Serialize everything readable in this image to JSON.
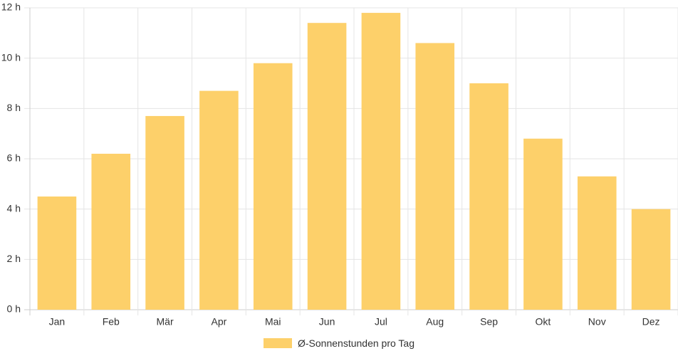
{
  "chart_data": {
    "type": "bar",
    "categories": [
      "Jan",
      "Feb",
      "Mär",
      "Apr",
      "Mai",
      "Jun",
      "Jul",
      "Aug",
      "Sep",
      "Okt",
      "Nov",
      "Dez"
    ],
    "series": [
      {
        "name": "Ø-Sonnenstunden pro Tag",
        "values": [
          4.5,
          6.2,
          7.7,
          8.7,
          9.8,
          11.4,
          11.8,
          10.6,
          9.0,
          6.8,
          5.3,
          4.0
        ]
      }
    ],
    "ylim": [
      0,
      12
    ],
    "y_ticks": [
      "0 h",
      "2 h",
      "4 h",
      "6 h",
      "8 h",
      "10 h",
      "12 h"
    ],
    "grid": true,
    "legend_position": "bottom",
    "colors": {
      "bar": "#fdd06a",
      "grid": "#e5e5e5",
      "axis": "#cccccc"
    }
  }
}
